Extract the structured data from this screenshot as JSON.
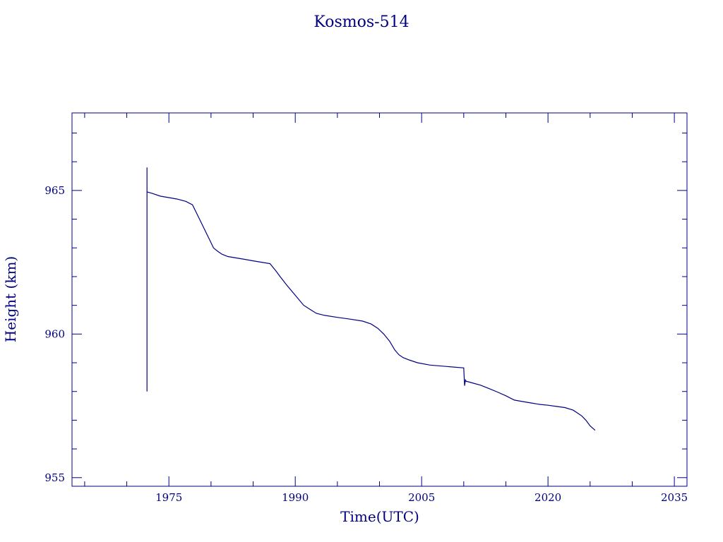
{
  "chart_data": {
    "type": "line",
    "title": "Kosmos-514",
    "xlabel": "Time(UTC)",
    "ylabel": "Height (km)",
    "xlim": [
      1963.5,
      2036.5
    ],
    "ylim": [
      954.7,
      967.7
    ],
    "xticks": [
      1975,
      1990,
      2005,
      2020,
      2035
    ],
    "yticks": [
      955,
      960,
      965
    ],
    "xtick_labels": [
      "1975",
      "1990",
      "2005",
      "2020",
      "2035"
    ],
    "ytick_labels": [
      "955",
      "960",
      "965"
    ],
    "x_minor_step": 5,
    "y_minor_step": 1,
    "grid": false,
    "line_color": "#000080",
    "series": [
      {
        "x": [
          1972.4,
          1972.4,
          1972.4,
          1972.4,
          1973.0,
          1974.0,
          1975.0,
          1976.0,
          1977.0,
          1977.8,
          1978.3,
          1978.8,
          1979.3,
          1979.8,
          1980.3,
          1980.8,
          1981.3,
          1982.0,
          1983.0,
          1984.0,
          1985.0,
          1986.0,
          1987.0,
          1987.7,
          1988.2,
          1989.0,
          1990.0,
          1991.0,
          1991.8,
          1992.5,
          1993.5,
          1995.0,
          1996.5,
          1998.0,
          1999.0,
          1999.8,
          2000.5,
          2001.2,
          2001.8,
          2002.3,
          2002.8,
          2003.5,
          2004.5,
          2006.0,
          2008.0,
          2010.0,
          2010.1,
          2010.2,
          2010.3,
          2010.4,
          2011.0,
          2012.0,
          2013.0,
          2014.0,
          2015.0,
          2016.0,
          2017.0,
          2018.0,
          2019.0,
          2020.0,
          2021.0,
          2022.0,
          2023.0,
          2024.0,
          2024.5,
          2025.0,
          2025.6
        ],
        "y": [
          958.0,
          965.8,
          958.0,
          964.95,
          964.9,
          964.8,
          964.75,
          964.7,
          964.62,
          964.5,
          964.2,
          963.9,
          963.6,
          963.3,
          963.0,
          962.88,
          962.78,
          962.7,
          962.65,
          962.6,
          962.55,
          962.5,
          962.45,
          962.2,
          962.0,
          961.7,
          961.35,
          961.0,
          960.85,
          960.72,
          960.65,
          960.58,
          960.52,
          960.45,
          960.35,
          960.2,
          960.0,
          959.75,
          959.45,
          959.28,
          959.18,
          959.1,
          959.0,
          958.92,
          958.87,
          958.82,
          958.2,
          958.4,
          958.35,
          958.35,
          958.3,
          958.22,
          958.1,
          957.98,
          957.85,
          957.7,
          957.65,
          957.6,
          957.55,
          957.52,
          957.48,
          957.44,
          957.35,
          957.15,
          957.0,
          956.8,
          956.65
        ]
      }
    ]
  }
}
